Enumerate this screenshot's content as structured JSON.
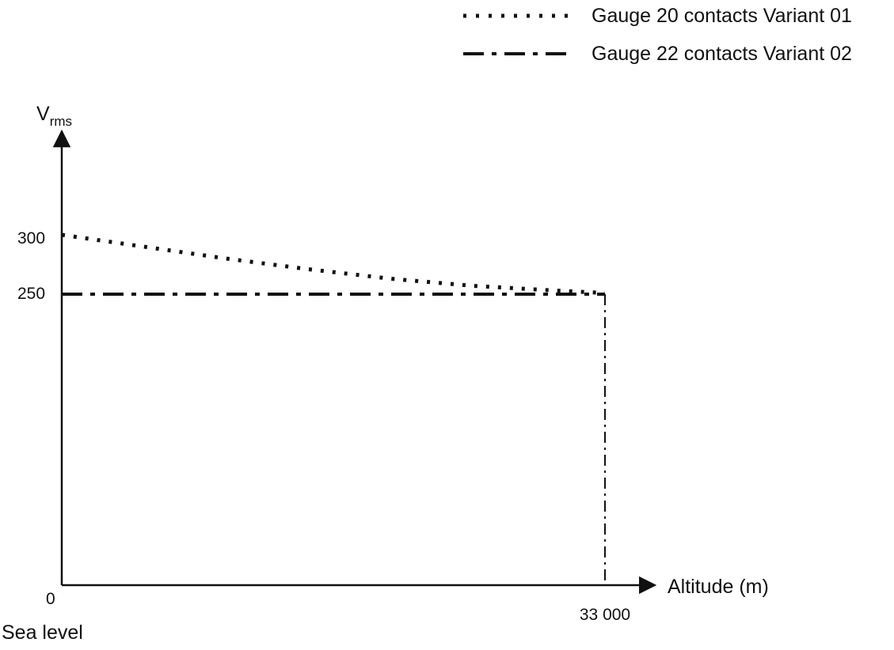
{
  "chart_data": {
    "type": "line",
    "title": "",
    "ylabel_main": "V",
    "ylabel_sub": "rms",
    "xlabel": "Altitude (m)",
    "x_ticks": [
      {
        "value": 0,
        "label": "0"
      },
      {
        "value": 33000,
        "label": "33 000"
      }
    ],
    "x_origin_note": "Sea level",
    "y_ticks": [
      {
        "value": 250,
        "label": "250"
      },
      {
        "value": 300,
        "label": "300"
      }
    ],
    "xlim": [
      0,
      36000
    ],
    "ylim": [
      0,
      480
    ],
    "grid": false,
    "legend_position": "top-right",
    "series": [
      {
        "name": "Gauge 20 contacts Variant 01",
        "style": "dotted",
        "x": [
          0,
          5000,
          10000,
          15000,
          20000,
          25000,
          30000,
          33000
        ],
        "y": [
          300,
          290,
          280,
          271,
          263,
          257,
          253,
          251
        ]
      },
      {
        "name": "Gauge 22 contacts Variant 02",
        "style": "dash-dot",
        "x": [
          0,
          33000
        ],
        "y": [
          250,
          250
        ]
      }
    ],
    "annotations": [
      {
        "type": "vertical-line",
        "style": "dash-dot-thin",
        "x": 33000,
        "y_from": 0,
        "y_to": 250
      }
    ],
    "colors": {
      "line": "#111111",
      "background": "#ffffff"
    }
  }
}
